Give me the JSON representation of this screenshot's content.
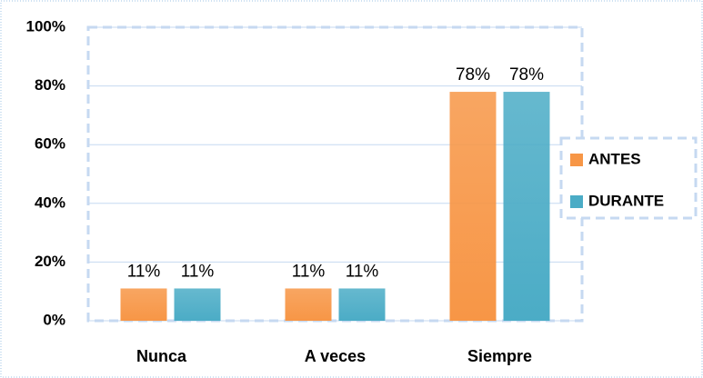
{
  "chart_data": {
    "type": "bar",
    "categories": [
      "Nunca",
      "A veces",
      "Siempre"
    ],
    "series": [
      {
        "name": "ANTES",
        "color": "#f79646",
        "values": [
          11,
          11,
          78
        ],
        "value_labels": [
          "11%",
          "11%",
          "78%"
        ]
      },
      {
        "name": "DURANTE",
        "color": "#4bacc6",
        "values": [
          11,
          11,
          78
        ],
        "value_labels": [
          "11%",
          "11%",
          "78%"
        ]
      }
    ],
    "ylim": [
      0,
      100
    ],
    "yticks": [
      {
        "value": 0,
        "label": "0%"
      },
      {
        "value": 20,
        "label": "20%"
      },
      {
        "value": 40,
        "label": "40%"
      },
      {
        "value": 60,
        "label": "60%"
      },
      {
        "value": 80,
        "label": "80%"
      },
      {
        "value": 100,
        "label": "100%"
      }
    ],
    "grid": true,
    "legend": "right"
  }
}
